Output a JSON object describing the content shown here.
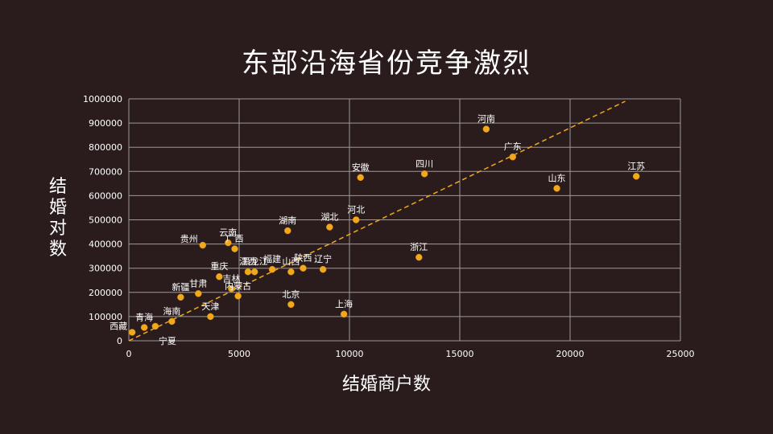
{
  "chart_data": {
    "type": "scatter",
    "title": "东部沿海省份竞争激烈",
    "xlabel": "结婚商户数",
    "ylabel": "结婚对数",
    "xlim": [
      0,
      25000
    ],
    "ylim": [
      0,
      1000000
    ],
    "xticks": [
      0,
      5000,
      10000,
      15000,
      20000,
      25000
    ],
    "yticks": [
      0,
      100000,
      200000,
      300000,
      400000,
      500000,
      600000,
      700000,
      800000,
      900000,
      1000000
    ],
    "grid": true,
    "trendline": {
      "type": "linear",
      "style": "dashed",
      "from": [
        0,
        0
      ],
      "to": [
        22500,
        990000
      ]
    },
    "colors": {
      "background": "#2a1c1c",
      "point": "#f0a81c",
      "trendline": "#f0a81c",
      "grid": "#9a9a9a",
      "text": "#ffffff"
    },
    "points": [
      {
        "label": "西藏",
        "x": 150,
        "y": 35000
      },
      {
        "label": "青海",
        "x": 700,
        "y": 55000
      },
      {
        "label": "宁夏",
        "x": 1200,
        "y": 60000
      },
      {
        "label": "海南",
        "x": 1950,
        "y": 80000
      },
      {
        "label": "新疆",
        "x": 2350,
        "y": 180000
      },
      {
        "label": "甘肃",
        "x": 3150,
        "y": 195000
      },
      {
        "label": "天津",
        "x": 3700,
        "y": 100000
      },
      {
        "label": "贵州",
        "x": 3350,
        "y": 395000
      },
      {
        "label": "重庆",
        "x": 4100,
        "y": 265000
      },
      {
        "label": "吉林",
        "x": 4650,
        "y": 215000
      },
      {
        "label": "内蒙古",
        "x": 4950,
        "y": 185000
      },
      {
        "label": "云南",
        "x": 4500,
        "y": 405000
      },
      {
        "label": "广西",
        "x": 4800,
        "y": 380000
      },
      {
        "label": "江西",
        "x": 5400,
        "y": 285000
      },
      {
        "label": "黑龙江",
        "x": 5700,
        "y": 285000
      },
      {
        "label": "福建",
        "x": 6500,
        "y": 295000
      },
      {
        "label": "湖南",
        "x": 7200,
        "y": 455000
      },
      {
        "label": "山西",
        "x": 7350,
        "y": 285000
      },
      {
        "label": "北京",
        "x": 7350,
        "y": 150000
      },
      {
        "label": "陕西",
        "x": 7900,
        "y": 300000
      },
      {
        "label": "辽宁",
        "x": 8800,
        "y": 295000
      },
      {
        "label": "湖北",
        "x": 9100,
        "y": 470000
      },
      {
        "label": "上海",
        "x": 9750,
        "y": 110000
      },
      {
        "label": "河北",
        "x": 10300,
        "y": 500000
      },
      {
        "label": "安徽",
        "x": 10500,
        "y": 675000
      },
      {
        "label": "浙江",
        "x": 13150,
        "y": 345000
      },
      {
        "label": "四川",
        "x": 13400,
        "y": 690000
      },
      {
        "label": "河南",
        "x": 16200,
        "y": 875000
      },
      {
        "label": "广东",
        "x": 17400,
        "y": 760000
      },
      {
        "label": "山东",
        "x": 19400,
        "y": 630000
      },
      {
        "label": "江苏",
        "x": 23000,
        "y": 680000
      }
    ]
  }
}
